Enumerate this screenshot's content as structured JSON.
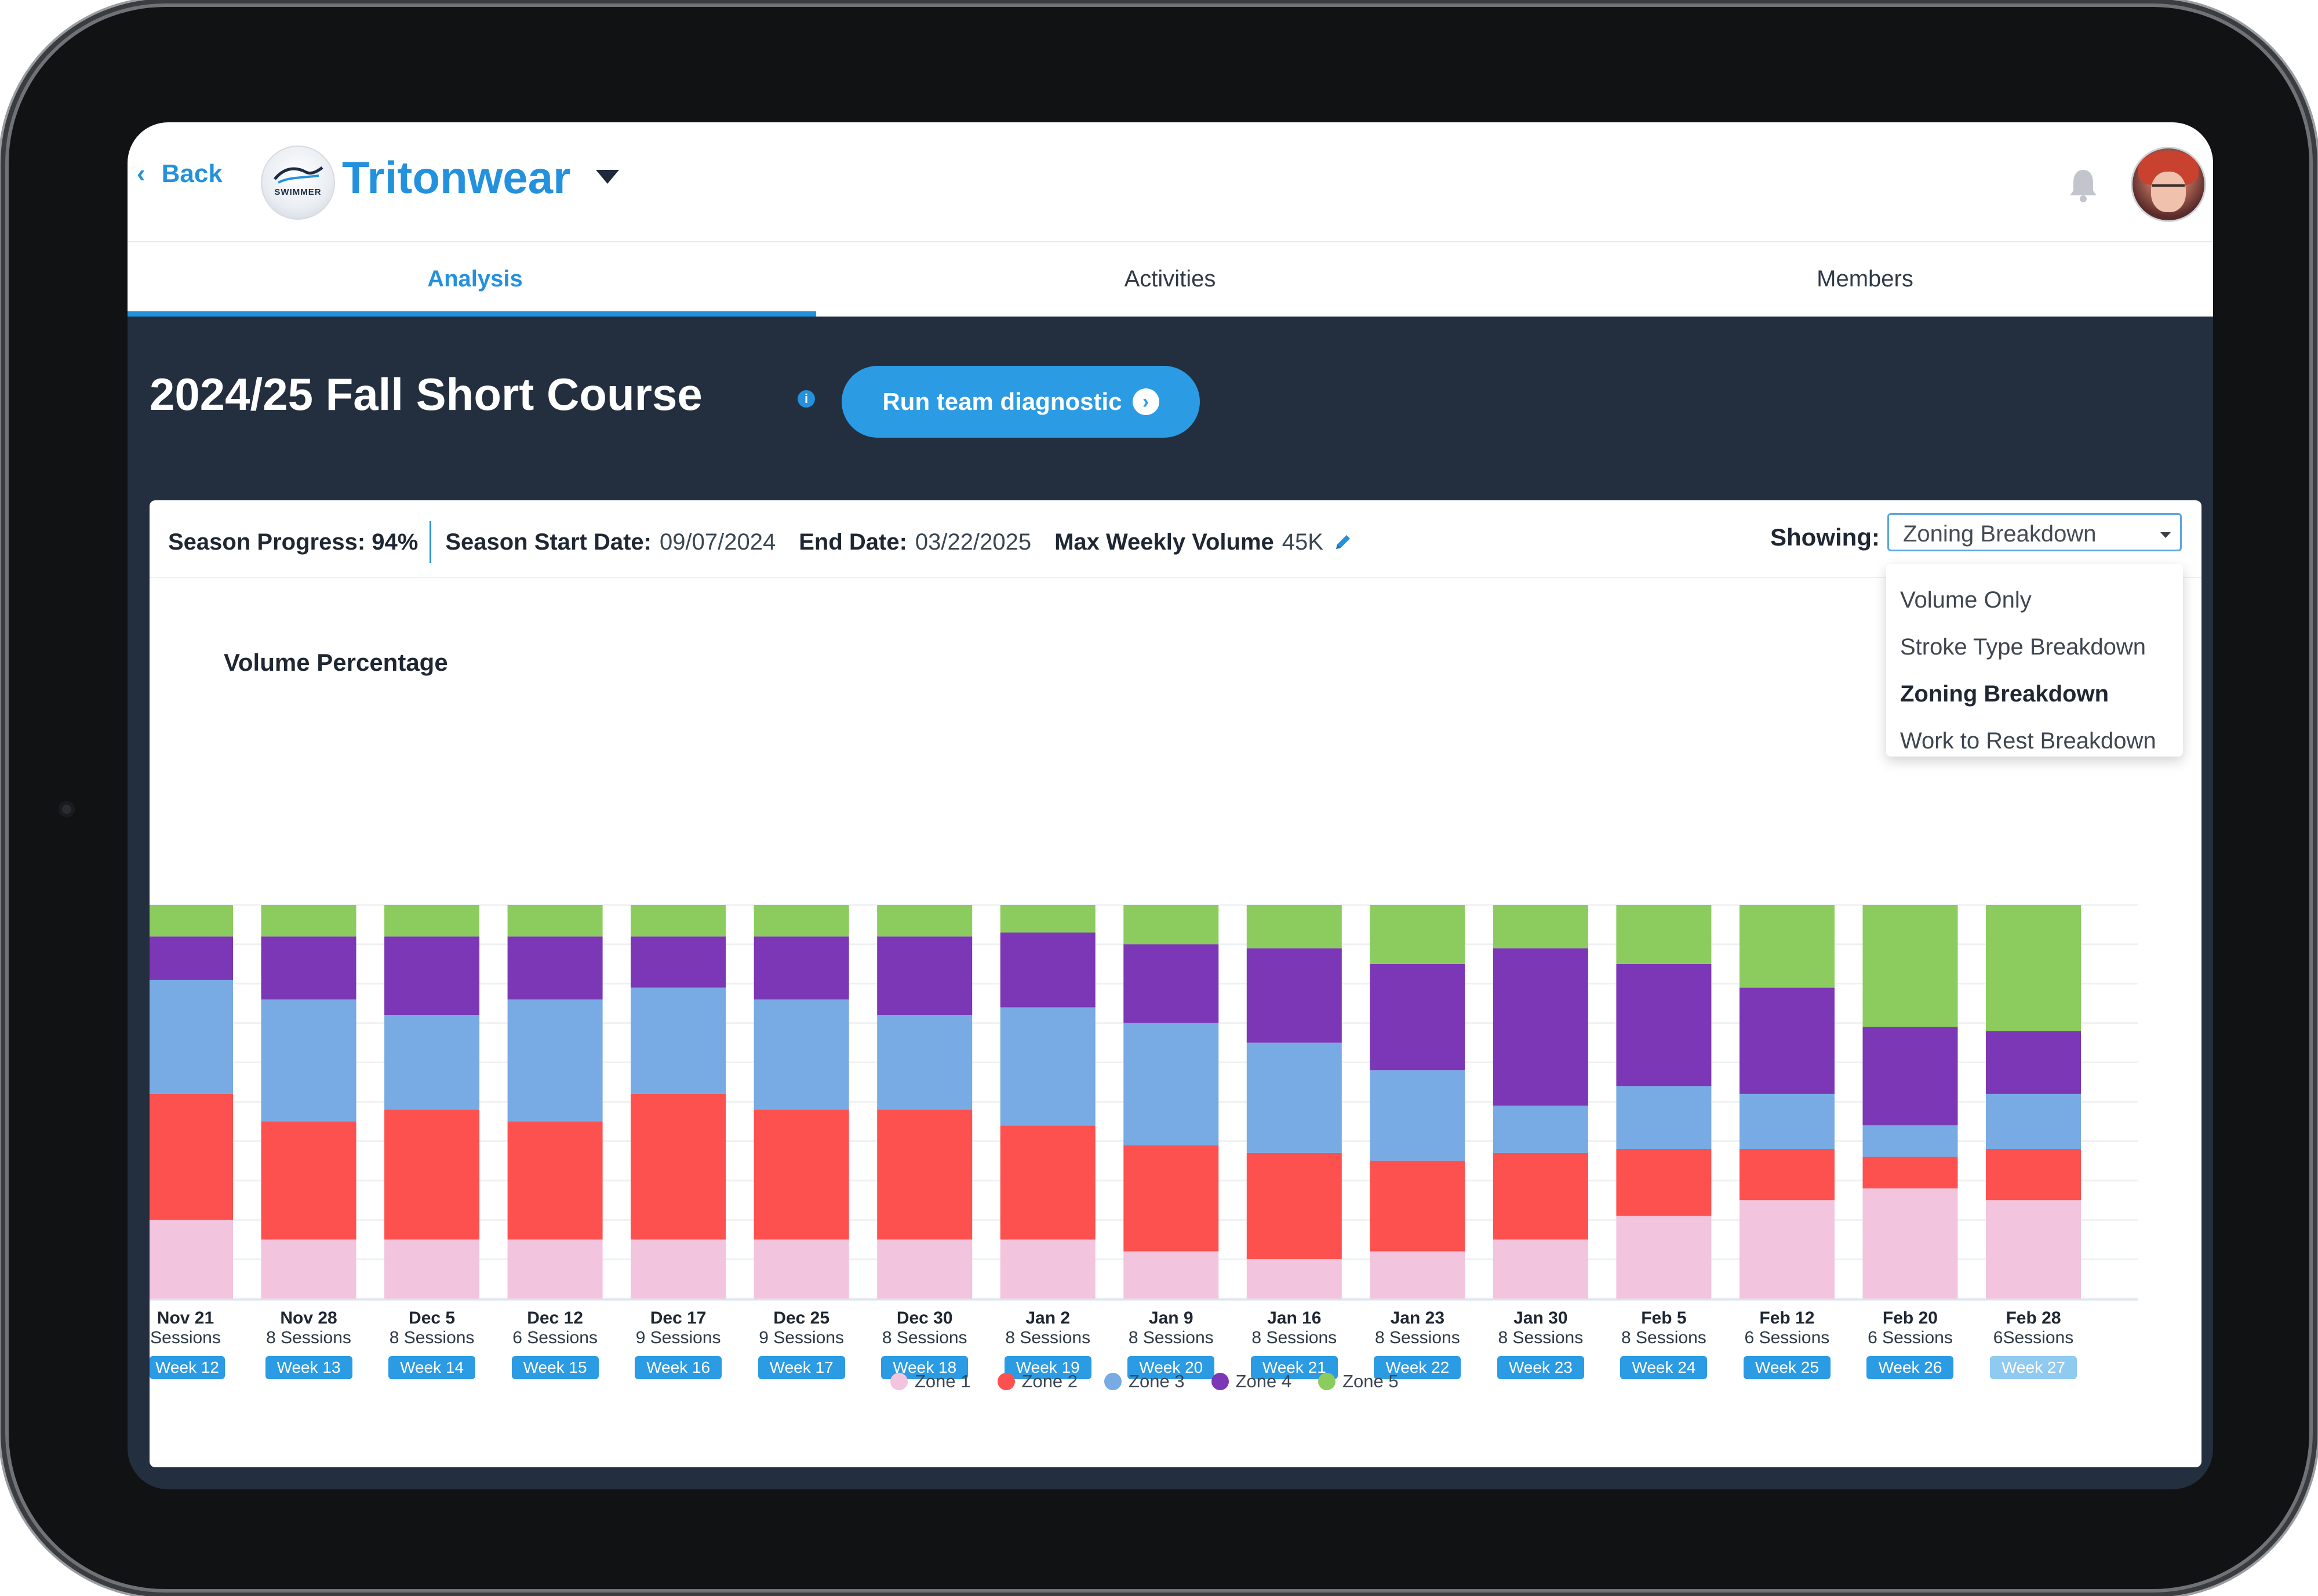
{
  "header": {
    "back_label": "Back",
    "team_logo_text": "SWIMMER",
    "team_name": "Tritonwear",
    "bell_icon": "bell-icon",
    "avatar_icon": "user-avatar"
  },
  "tabs": [
    {
      "label": "Analysis",
      "active": true
    },
    {
      "label": "Activities",
      "active": false
    },
    {
      "label": "Members",
      "active": false
    }
  ],
  "season": {
    "title": "2024/25 Fall Short Course",
    "info_icon": "i",
    "diagnostic_label": "Run team diagnostic"
  },
  "stats": {
    "progress_label": "Season Progress:",
    "progress_value": "94%",
    "start_label": "Season Start Date:",
    "start_value": "09/07/2024",
    "end_label": "End Date:",
    "end_value": "03/22/2025",
    "max_label": "Max Weekly Volume",
    "max_value": "45K"
  },
  "showing": {
    "label": "Showing:",
    "selected": "Zoning Breakdown",
    "options": [
      "Volume Only",
      "Stroke Type Breakdown",
      "Zoning Breakdown",
      "Work to Rest Breakdown"
    ]
  },
  "colors": {
    "zone1": "#f2c4de",
    "zone2": "#fd5150",
    "zone3": "#78aae3",
    "zone4": "#7b37b5",
    "zone5": "#8ccc5e",
    "accent": "#2491dd"
  },
  "chart_data": {
    "type": "bar",
    "stacked": true,
    "title": "Volume Percentage",
    "ylim": [
      0,
      100
    ],
    "categories": [
      "Nov 21",
      "Nov 28",
      "Dec 5",
      "Dec 12",
      "Dec 17",
      "Dec 25",
      "Dec 30",
      "Jan 2",
      "Jan 9",
      "Jan 16",
      "Jan 23",
      "Jan 30",
      "Feb 5",
      "Feb 12",
      "Feb 20",
      "Feb 28"
    ],
    "sessions": [
      "Sessions",
      "8 Sessions",
      "8 Sessions",
      "6 Sessions",
      "9 Sessions",
      "9 Sessions",
      "8 Sessions",
      "8 Sessions",
      "8 Sessions",
      "8 Sessions",
      "8 Sessions",
      "8 Sessions",
      "8 Sessions",
      "6 Sessions",
      "6 Sessions",
      "6Sessions"
    ],
    "weeks": [
      "Week 12",
      "Week 13",
      "Week 14",
      "Week 15",
      "Week 16",
      "Week 17",
      "Week 18",
      "Week 19",
      "Week 20",
      "Week 21",
      "Week 22",
      "Week 23",
      "Week 24",
      "Week 25",
      "Week 26",
      "Week 27"
    ],
    "series": [
      {
        "name": "Zone 1",
        "values": [
          20,
          15,
          15,
          15,
          15,
          15,
          15,
          15,
          12,
          10,
          12,
          15,
          21,
          25,
          28,
          25
        ]
      },
      {
        "name": "Zone 2",
        "values": [
          32,
          30,
          33,
          30,
          37,
          33,
          33,
          29,
          27,
          27,
          23,
          22,
          17,
          13,
          8,
          13
        ]
      },
      {
        "name": "Zone 3",
        "values": [
          29,
          31,
          24,
          31,
          27,
          28,
          24,
          30,
          31,
          28,
          23,
          12,
          16,
          14,
          8,
          14
        ]
      },
      {
        "name": "Zone 4",
        "values": [
          11,
          16,
          20,
          16,
          13,
          16,
          20,
          19,
          20,
          24,
          27,
          40,
          31,
          27,
          25,
          16
        ]
      },
      {
        "name": "Zone 5",
        "values": [
          8,
          8,
          8,
          8,
          8,
          8,
          8,
          7,
          10,
          11,
          15,
          11,
          15,
          21,
          31,
          32
        ]
      }
    ],
    "legend": [
      "Zone 1",
      "Zone 2",
      "Zone 3",
      "Zone 4",
      "Zone 5"
    ]
  }
}
